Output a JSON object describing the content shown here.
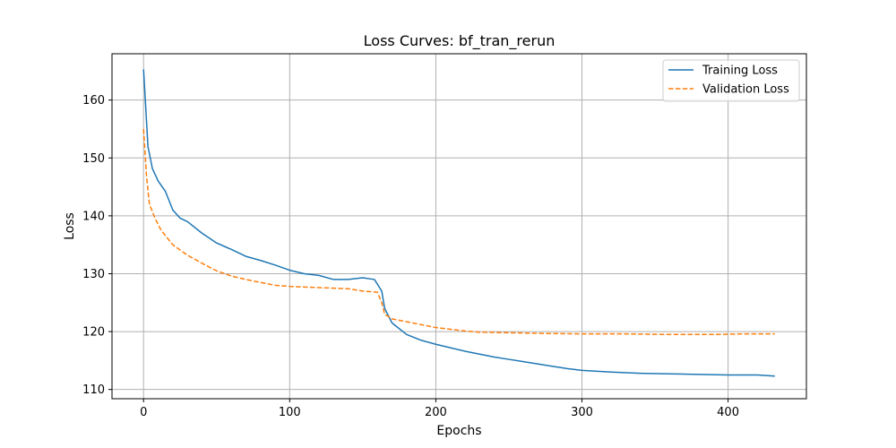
{
  "chart_data": {
    "type": "line",
    "title": "Loss Curves: bf_tran_rerun",
    "xlabel": "Epochs",
    "ylabel": "Loss",
    "xlim": [
      -21.6,
      453.6
    ],
    "ylim": [
      108.4,
      168.0
    ],
    "xticks": [
      0,
      100,
      200,
      300,
      400
    ],
    "yticks": [
      110,
      120,
      130,
      140,
      150,
      160
    ],
    "grid": true,
    "legend_position": "top-right",
    "series": [
      {
        "name": "Training Loss",
        "color": "#1f77b4",
        "dash": "solid",
        "points": [
          [
            0,
            165.3
          ],
          [
            3,
            152.0
          ],
          [
            6,
            148.2
          ],
          [
            10,
            146.0
          ],
          [
            15,
            144.2
          ],
          [
            20,
            141.0
          ],
          [
            25,
            139.6
          ],
          [
            30,
            139.0
          ],
          [
            40,
            137.0
          ],
          [
            50,
            135.3
          ],
          [
            60,
            134.2
          ],
          [
            70,
            133.0
          ],
          [
            80,
            132.3
          ],
          [
            90,
            131.5
          ],
          [
            100,
            130.6
          ],
          [
            110,
            130.0
          ],
          [
            120,
            129.7
          ],
          [
            130,
            129.0
          ],
          [
            140,
            129.0
          ],
          [
            150,
            129.3
          ],
          [
            158,
            129.0
          ],
          [
            163,
            127.0
          ],
          [
            165,
            124.0
          ],
          [
            170,
            121.5
          ],
          [
            180,
            119.5
          ],
          [
            190,
            118.5
          ],
          [
            200,
            117.8
          ],
          [
            210,
            117.2
          ],
          [
            220,
            116.6
          ],
          [
            230,
            116.1
          ],
          [
            240,
            115.6
          ],
          [
            250,
            115.2
          ],
          [
            260,
            114.8
          ],
          [
            270,
            114.4
          ],
          [
            280,
            114.0
          ],
          [
            290,
            113.6
          ],
          [
            300,
            113.3
          ],
          [
            320,
            113.0
          ],
          [
            340,
            112.8
          ],
          [
            360,
            112.7
          ],
          [
            380,
            112.6
          ],
          [
            400,
            112.5
          ],
          [
            420,
            112.5
          ],
          [
            432,
            112.3
          ]
        ]
      },
      {
        "name": "Validation Loss",
        "color": "#ff7f0e",
        "dash": "dashed",
        "points": [
          [
            0,
            155.0
          ],
          [
            2,
            147.0
          ],
          [
            4,
            142.0
          ],
          [
            8,
            139.5
          ],
          [
            12,
            137.5
          ],
          [
            20,
            135.0
          ],
          [
            30,
            133.2
          ],
          [
            40,
            131.8
          ],
          [
            50,
            130.5
          ],
          [
            60,
            129.6
          ],
          [
            70,
            129.0
          ],
          [
            80,
            128.5
          ],
          [
            90,
            128.0
          ],
          [
            100,
            127.8
          ],
          [
            110,
            127.7
          ],
          [
            120,
            127.6
          ],
          [
            130,
            127.5
          ],
          [
            140,
            127.4
          ],
          [
            150,
            127.0
          ],
          [
            160,
            126.8
          ],
          [
            163,
            125.0
          ],
          [
            165,
            123.0
          ],
          [
            170,
            122.2
          ],
          [
            180,
            121.7
          ],
          [
            190,
            121.2
          ],
          [
            200,
            120.7
          ],
          [
            210,
            120.4
          ],
          [
            220,
            120.1
          ],
          [
            230,
            119.9
          ],
          [
            250,
            119.8
          ],
          [
            270,
            119.7
          ],
          [
            300,
            119.6
          ],
          [
            330,
            119.6
          ],
          [
            360,
            119.5
          ],
          [
            390,
            119.5
          ],
          [
            410,
            119.6
          ],
          [
            432,
            119.6
          ]
        ]
      }
    ]
  }
}
